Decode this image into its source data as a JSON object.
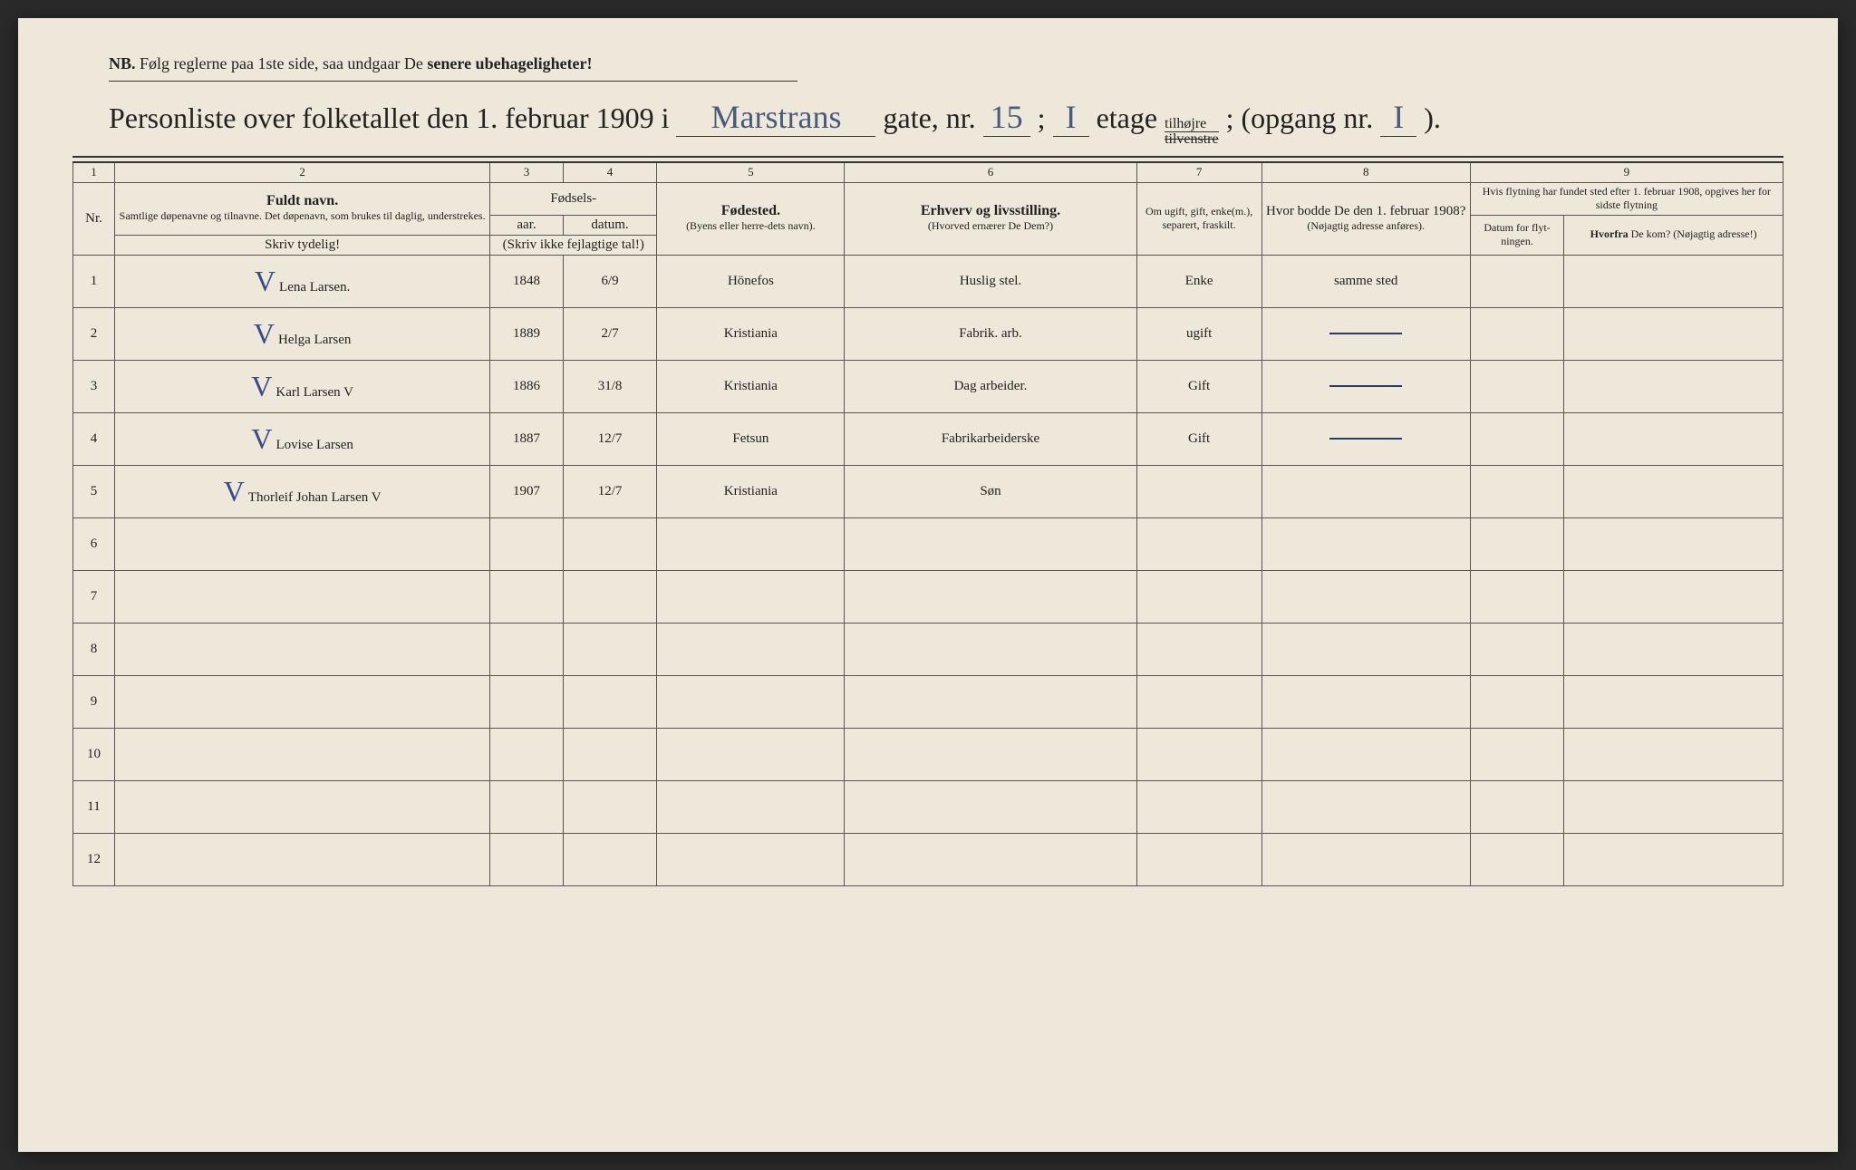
{
  "colors": {
    "paper": "#ede8d9",
    "ink_print": "#222222",
    "ink_hand": "#2a3a6a",
    "ink_hand_light": "#4a5a7a",
    "ink_faint": "#9a9a8a",
    "border": "#555555"
  },
  "notice": {
    "prefix": "NB.",
    "text_a": "Følg reglerne paa 1ste side, saa undgaar De ",
    "text_b": "senere ubehageligheter!"
  },
  "title": {
    "lead": "Personliste over folketallet den 1. februar 1909 i",
    "street": "Marstrans",
    "gate": "gate, nr.",
    "gate_nr": "15",
    "semi": ";",
    "etage_nr": "I",
    "etage": "etage",
    "tilhojre": "tilhøjre",
    "tilvenstre": "tilvenstre",
    "semi2": ";",
    "opgang": "(opgang nr.",
    "opgang_nr": "I",
    "close": ")."
  },
  "columns": {
    "nums": [
      "1",
      "2",
      "3",
      "4",
      "5",
      "6",
      "7",
      "8",
      "9"
    ],
    "nr": "Nr.",
    "name_main": "Fuldt navn.",
    "name_sub": "Samtlige døpenavne og tilnavne. Det døpenavn, som brukes til daglig, understrekes.",
    "name_instr": "Skriv tydelig!",
    "birth_group": "Fødsels-",
    "year": "aar.",
    "date": "datum.",
    "birth_instr": "(Skriv ikke fejlagtige tal!)",
    "place_main": "Fødested.",
    "place_sub": "(Byens eller herre-dets navn).",
    "occ_main": "Erhverv og livsstilling.",
    "occ_sub": "(Hvorved ernærer De Dem?)",
    "marital": "Om ugift, gift, enke(m.), separert, fraskilt.",
    "addr_main": "Hvor bodde De den 1. februar 1908?",
    "addr_sub": "(Nøjagtig adresse anføres).",
    "move_group": "Hvis flytning har fundet sted efter 1. februar 1908, opgives her for sidste flytning",
    "move_date": "Datum for flyt-ningen.",
    "move_from_main": "Hvorfra",
    "move_from_sub": " De kom? (Nøjagtig adresse!)"
  },
  "rows": [
    {
      "nr": "1",
      "check": "V",
      "name": "Lena Larsen.",
      "year": "1848",
      "date": "6/9",
      "place": "Hönefos",
      "occ": "Huslig stel.",
      "marital": "Enke",
      "addr": "samme sted",
      "mdate": "",
      "from": ""
    },
    {
      "nr": "2",
      "check": "V",
      "name": "Helga Larsen",
      "year": "1889",
      "date": "2/7",
      "place": "Kristiania",
      "occ": "Fabrik. arb.",
      "marital": "ugift",
      "addr": "—",
      "mdate": "",
      "from": ""
    },
    {
      "nr": "3",
      "check": "V",
      "name": "Karl Larsen           V",
      "year": "1886",
      "date": "31/8",
      "place": "Kristiania",
      "occ": "Dag arbeider.",
      "marital": "Gift",
      "addr": "—",
      "mdate": "",
      "from": ""
    },
    {
      "nr": "4",
      "check": "V",
      "name": "Lovise Larsen",
      "year": "1887",
      "date": "12/7",
      "place": "Fetsun",
      "occ": "Fabrikarbeiderske",
      "marital": "Gift",
      "addr": "—",
      "mdate": "",
      "from": ""
    },
    {
      "nr": "5",
      "check": "V",
      "name": "Thorleif Johan Larsen  V",
      "year": "1907",
      "date": "12/7",
      "place": "Kristiania",
      "occ": "Søn",
      "marital": "",
      "addr": "",
      "mdate": "",
      "from": "",
      "faint_occ": true
    },
    {
      "nr": "6",
      "check": "",
      "name": "",
      "year": "",
      "date": "",
      "place": "",
      "occ": "",
      "marital": "",
      "addr": "",
      "mdate": "",
      "from": ""
    },
    {
      "nr": "7",
      "check": "",
      "name": "",
      "year": "",
      "date": "",
      "place": "",
      "occ": "",
      "marital": "",
      "addr": "",
      "mdate": "",
      "from": ""
    },
    {
      "nr": "8",
      "check": "",
      "name": "",
      "year": "",
      "date": "",
      "place": "",
      "occ": "",
      "marital": "",
      "addr": "",
      "mdate": "",
      "from": ""
    },
    {
      "nr": "9",
      "check": "",
      "name": "",
      "year": "",
      "date": "",
      "place": "",
      "occ": "",
      "marital": "",
      "addr": "",
      "mdate": "",
      "from": ""
    },
    {
      "nr": "10",
      "check": "",
      "name": "",
      "year": "",
      "date": "",
      "place": "",
      "occ": "",
      "marital": "",
      "addr": "",
      "mdate": "",
      "from": ""
    },
    {
      "nr": "11",
      "check": "",
      "name": "",
      "year": "",
      "date": "",
      "place": "",
      "occ": "",
      "marital": "",
      "addr": "",
      "mdate": "",
      "from": ""
    },
    {
      "nr": "12",
      "check": "",
      "name": "",
      "year": "",
      "date": "",
      "place": "",
      "occ": "",
      "marital": "",
      "addr": "",
      "mdate": "",
      "from": ""
    }
  ]
}
